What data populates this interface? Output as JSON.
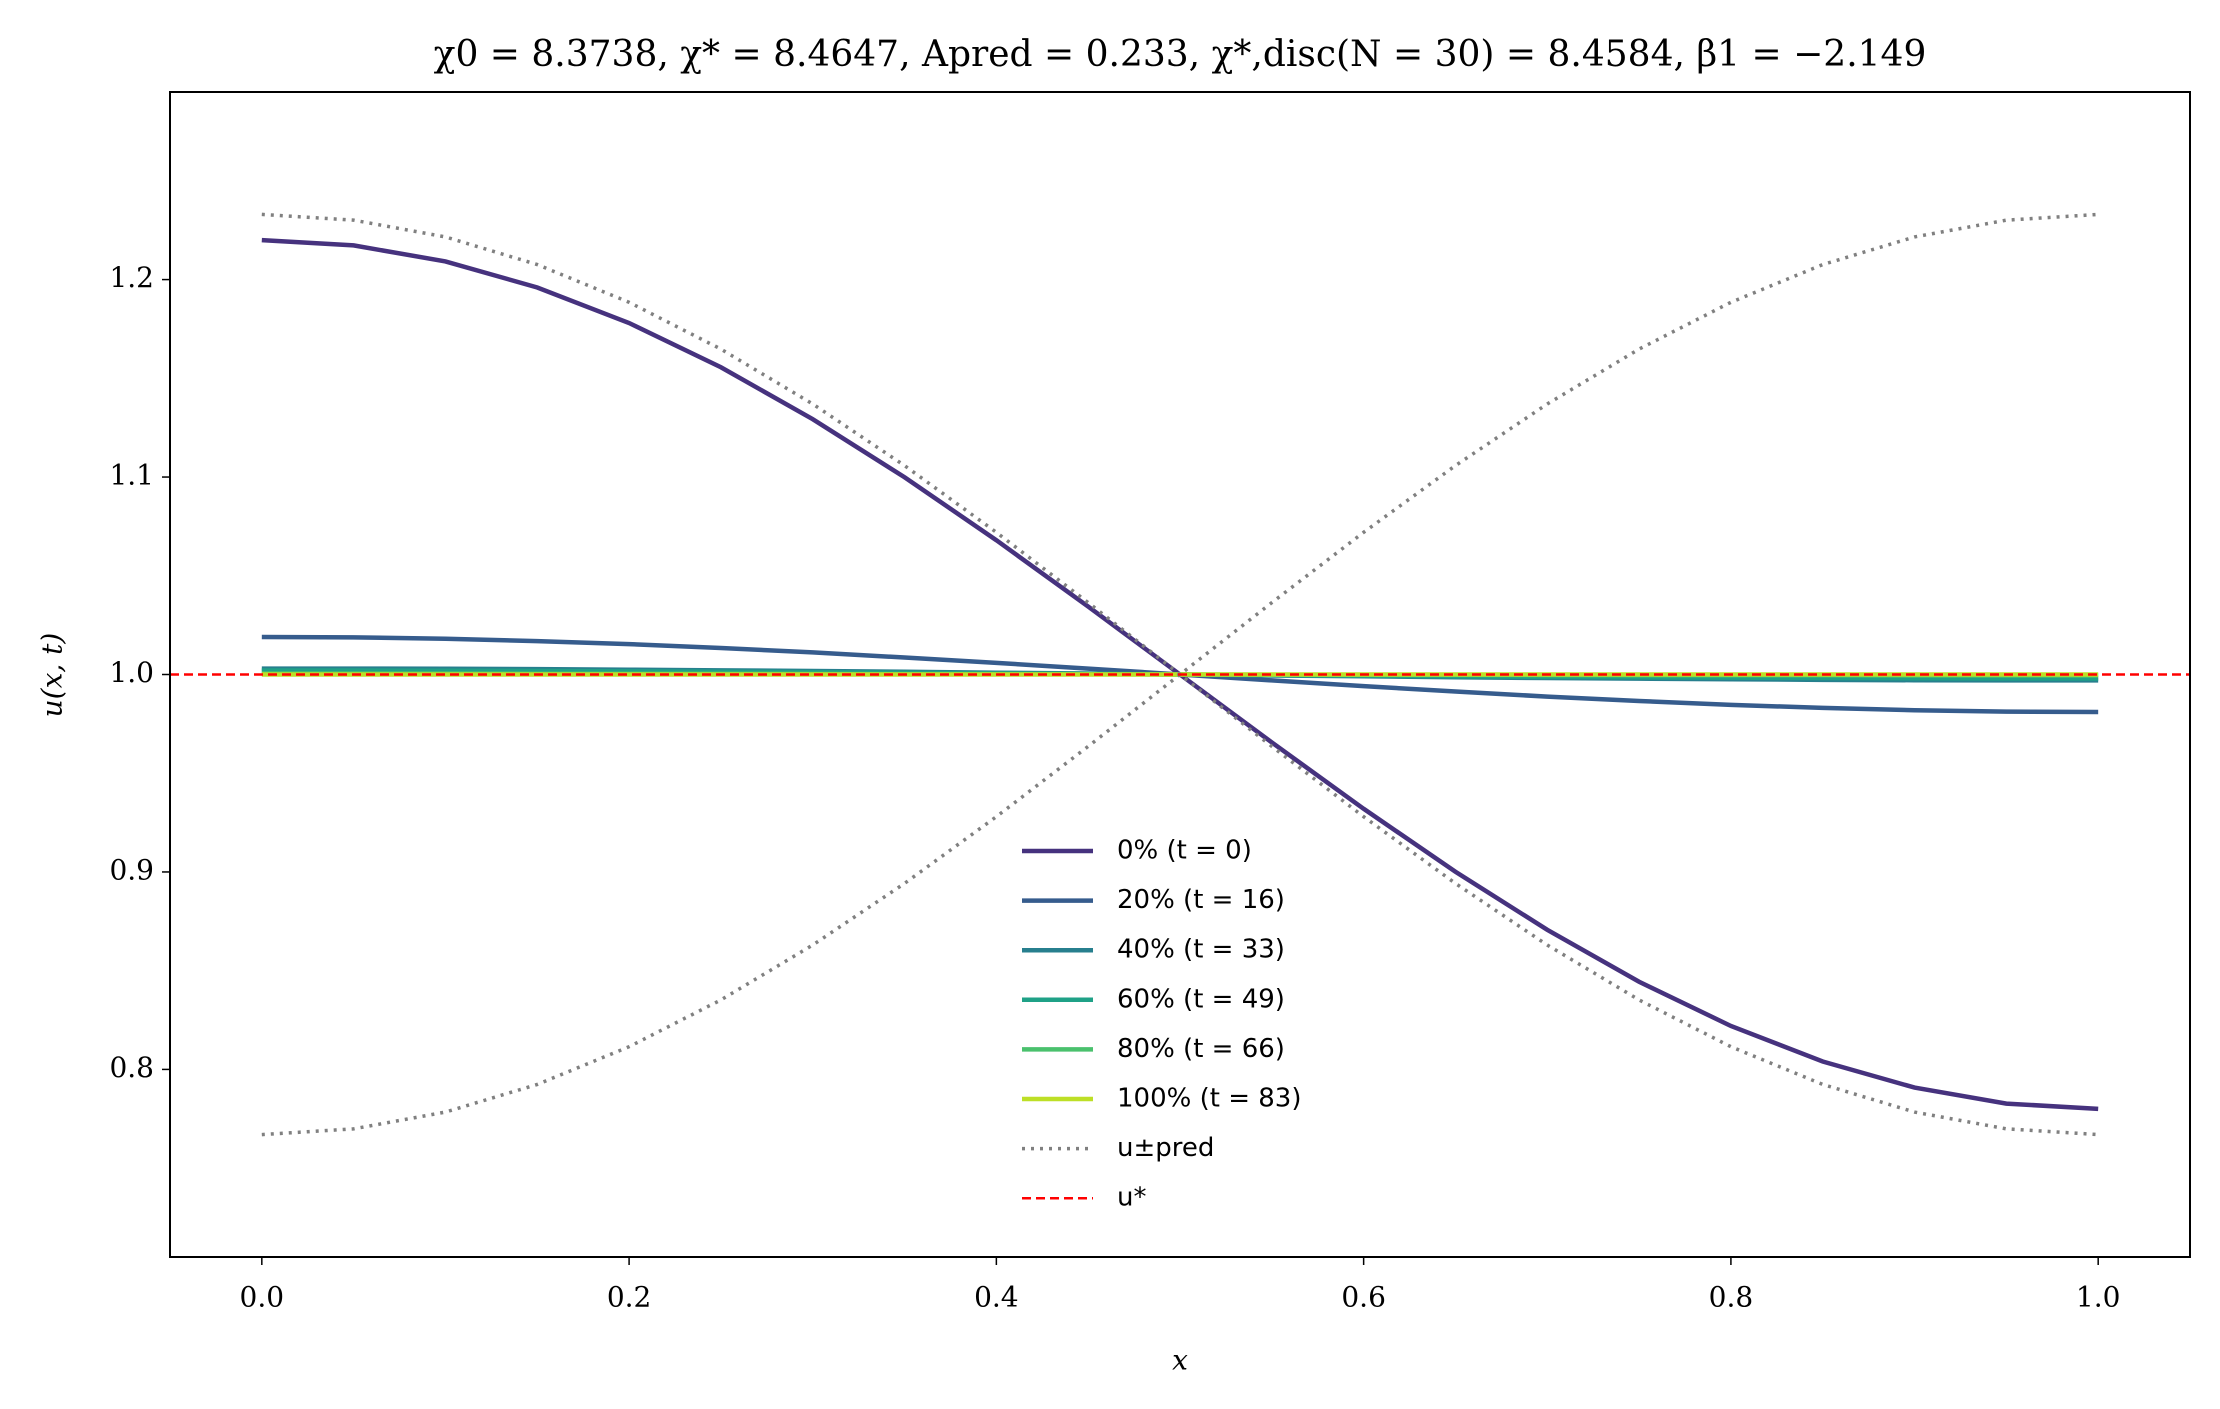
{
  "chart_data": {
    "type": "line",
    "title": "χ0 = 8.3738,  χ* = 8.4647,  Apred = 0.233,  χ*,disc(N = 30) = 8.4584,  β1 = −2.149",
    "xlabel": "x",
    "ylabel": "u(x, t)",
    "x": [
      0,
      0.05,
      0.1,
      0.15,
      0.2,
      0.25,
      0.3,
      0.35,
      0.4,
      0.45,
      0.5,
      0.55,
      0.6,
      0.65,
      0.7,
      0.75,
      0.8,
      0.85,
      0.9,
      0.95,
      1.0
    ],
    "xlim": [
      -0.05,
      1.05
    ],
    "xticks": [
      {
        "value": 0,
        "label": "0.0"
      },
      0.2,
      0.4,
      0.6,
      0.8,
      {
        "value": 1,
        "label": "1.0"
      }
    ],
    "ylim": [
      0.705,
      1.295
    ],
    "yticks": [
      0.8,
      0.9,
      {
        "value": 1,
        "label": "1.0"
      },
      1.1,
      1.2
    ],
    "series": [
      {
        "name": "0% (t = 0)",
        "color": "#46327e",
        "style": "solid",
        "values": [
          1.22,
          1.2173,
          1.2092,
          1.196,
          1.178,
          1.1556,
          1.1293,
          1.0999,
          1.068,
          1.0344,
          1.0,
          0.9656,
          0.932,
          0.9001,
          0.8707,
          0.8444,
          0.822,
          0.804,
          0.7908,
          0.7827,
          0.78
        ]
      },
      {
        "name": "20% (t = 16)",
        "color": "#365c8d",
        "style": "solid",
        "values": [
          1.019,
          1.0188,
          1.0181,
          1.0169,
          1.0154,
          1.0134,
          1.0112,
          1.0086,
          1.0059,
          1.003,
          1.0,
          0.997,
          0.9941,
          0.9914,
          0.9888,
          0.9866,
          0.9846,
          0.9831,
          0.9819,
          0.9812,
          0.981
        ]
      },
      {
        "name": "40% (t = 33)",
        "color": "#277f8e",
        "style": "solid",
        "values": [
          1.003,
          1.003,
          1.0029,
          1.0027,
          1.0024,
          1.0021,
          1.0018,
          1.0014,
          1.0009,
          1.0005,
          1.0,
          0.9995,
          0.9991,
          0.9986,
          0.9982,
          0.9979,
          0.9976,
          0.9973,
          0.9971,
          0.997,
          0.997
        ]
      },
      {
        "name": "60% (t = 49)",
        "color": "#1fa187",
        "style": "solid",
        "values": [
          1.002,
          1.002,
          1.0019,
          1.0018,
          1.0016,
          1.0014,
          1.0012,
          1.0009,
          1.0006,
          1.0003,
          1.0,
          0.9997,
          0.9994,
          0.9991,
          0.9988,
          0.9986,
          0.9984,
          0.9982,
          0.9981,
          0.998,
          0.998
        ]
      },
      {
        "name": "80% (t = 66)",
        "color": "#4ac16d",
        "style": "solid",
        "values": [
          1.0005,
          1.0005,
          1.0005,
          1.0004,
          1.0004,
          1.0004,
          1.0003,
          1.0002,
          1.0002,
          1.0001,
          1.0,
          0.9999,
          0.9998,
          0.9998,
          0.9997,
          0.9996,
          0.9996,
          0.9996,
          0.9995,
          0.9995,
          0.9995
        ]
      },
      {
        "name": "100% (t = 83)",
        "color": "#bddf26",
        "style": "solid",
        "values": [
          1,
          1,
          1,
          1,
          1,
          1,
          1,
          1,
          1,
          1,
          1,
          1,
          1,
          1,
          1,
          1,
          1,
          1,
          1,
          1,
          1
        ]
      },
      {
        "name": "u±pred",
        "color": "#808080",
        "style": "dotted",
        "values": [
          1.233,
          1.2301,
          1.2216,
          1.2076,
          1.1885,
          1.1648,
          1.137,
          1.1058,
          1.072,
          1.0364,
          1.0,
          0.9636,
          0.928,
          0.8942,
          0.863,
          0.8352,
          0.8115,
          0.7924,
          0.7784,
          0.7699,
          0.767
        ]
      },
      {
        "color": "#808080",
        "style": "dotted",
        "values": [
          0.767,
          0.7699,
          0.7784,
          0.7924,
          0.8115,
          0.8352,
          0.863,
          0.8942,
          0.928,
          0.9636,
          1.0,
          1.0364,
          1.072,
          1.1058,
          1.137,
          1.1648,
          1.1885,
          1.2076,
          1.2216,
          1.2301,
          1.233
        ]
      }
    ],
    "reference_line": {
      "name": "u*",
      "value": 1,
      "color": "#ff0000",
      "style": "dashed"
    },
    "legend": "lower center"
  }
}
